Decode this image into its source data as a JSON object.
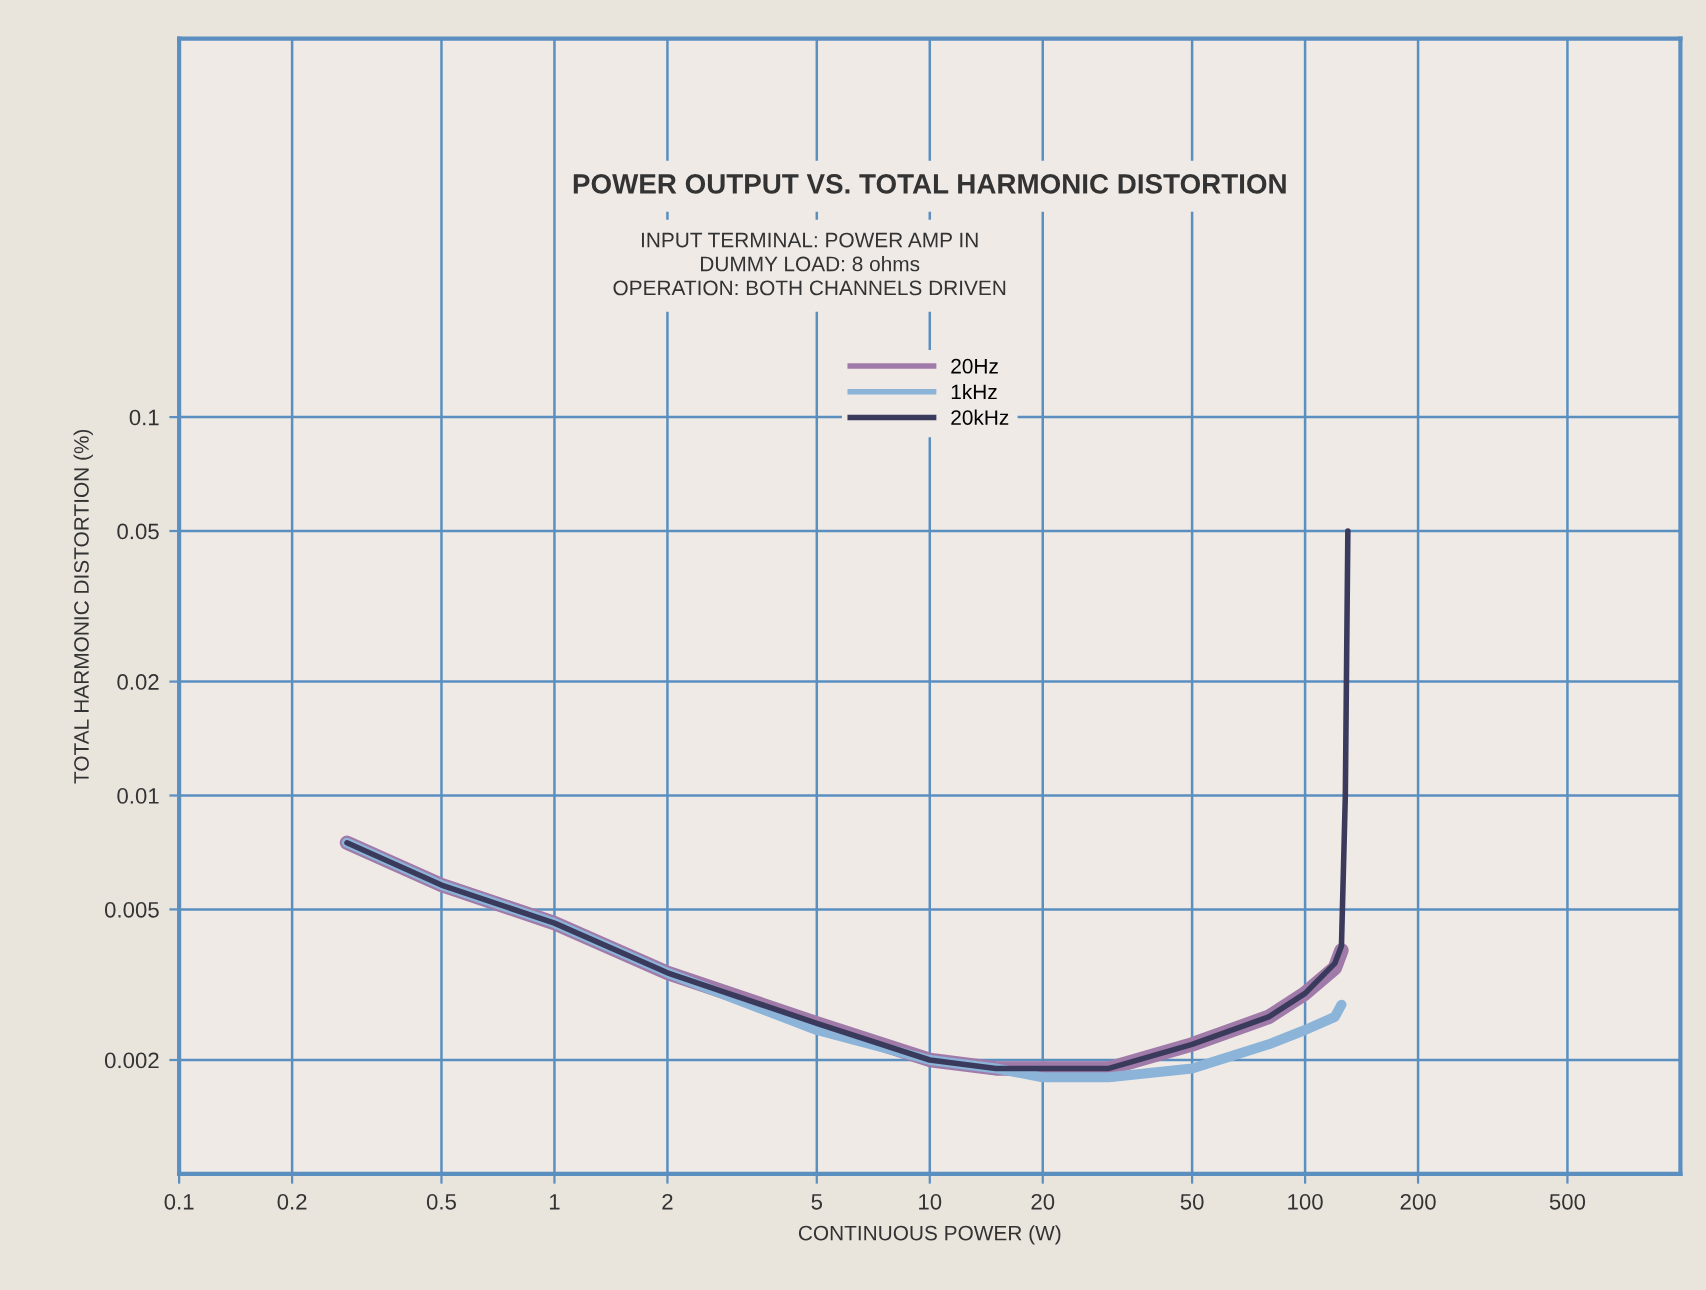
{
  "chart_data": {
    "type": "line",
    "title": "POWER OUTPUT VS. TOTAL HARMONIC DISTORTION",
    "subtitle": "INPUT TERMINAL: POWER AMP IN\nDUMMY LOAD: 8 ohms\nOPERATION: BOTH CHANNELS DRIVEN",
    "xlabel": "CONTINUOUS POWER (W)",
    "ylabel": "TOTAL HARMONIC DISTORTION (%)",
    "log": "xy",
    "xlim": [
      0.1,
      1000
    ],
    "ylim": [
      0.001,
      1
    ],
    "xticks": [
      0.1,
      0.2,
      0.5,
      1,
      2,
      5,
      10,
      20,
      50,
      100,
      200,
      500
    ],
    "yticks": [
      0.002,
      0.005,
      0.01,
      0.02,
      0.05,
      0.1
    ],
    "grid": true,
    "legend": "top",
    "series": [
      {
        "name": "20Hz",
        "color": "#a07aa8",
        "x": [
          0.28,
          0.5,
          1,
          2,
          5,
          10,
          15,
          20,
          30,
          50,
          80,
          100,
          120,
          125
        ],
        "values": [
          0.0075,
          0.0058,
          0.0046,
          0.0034,
          0.0025,
          0.002,
          0.0019,
          0.0019,
          0.0019,
          0.0022,
          0.0026,
          0.003,
          0.0035,
          0.0039
        ]
      },
      {
        "name": "1kHz",
        "color": "#8cb4d8",
        "x": [
          0.28,
          0.5,
          1,
          2,
          5,
          10,
          15,
          20,
          30,
          50,
          80,
          100,
          120,
          125
        ],
        "values": [
          0.0075,
          0.0058,
          0.0046,
          0.0034,
          0.0024,
          0.002,
          0.0019,
          0.0018,
          0.0018,
          0.0019,
          0.0022,
          0.0024,
          0.0026,
          0.0028
        ]
      },
      {
        "name": "20kHz",
        "color": "#3a3a5c",
        "x": [
          0.28,
          0.5,
          1,
          2,
          5,
          10,
          15,
          20,
          30,
          50,
          80,
          100,
          120,
          125,
          128,
          130
        ],
        "values": [
          0.0075,
          0.0058,
          0.0046,
          0.0034,
          0.0025,
          0.002,
          0.0019,
          0.0019,
          0.0019,
          0.0022,
          0.0026,
          0.003,
          0.0036,
          0.004,
          0.01,
          0.05
        ]
      }
    ]
  }
}
